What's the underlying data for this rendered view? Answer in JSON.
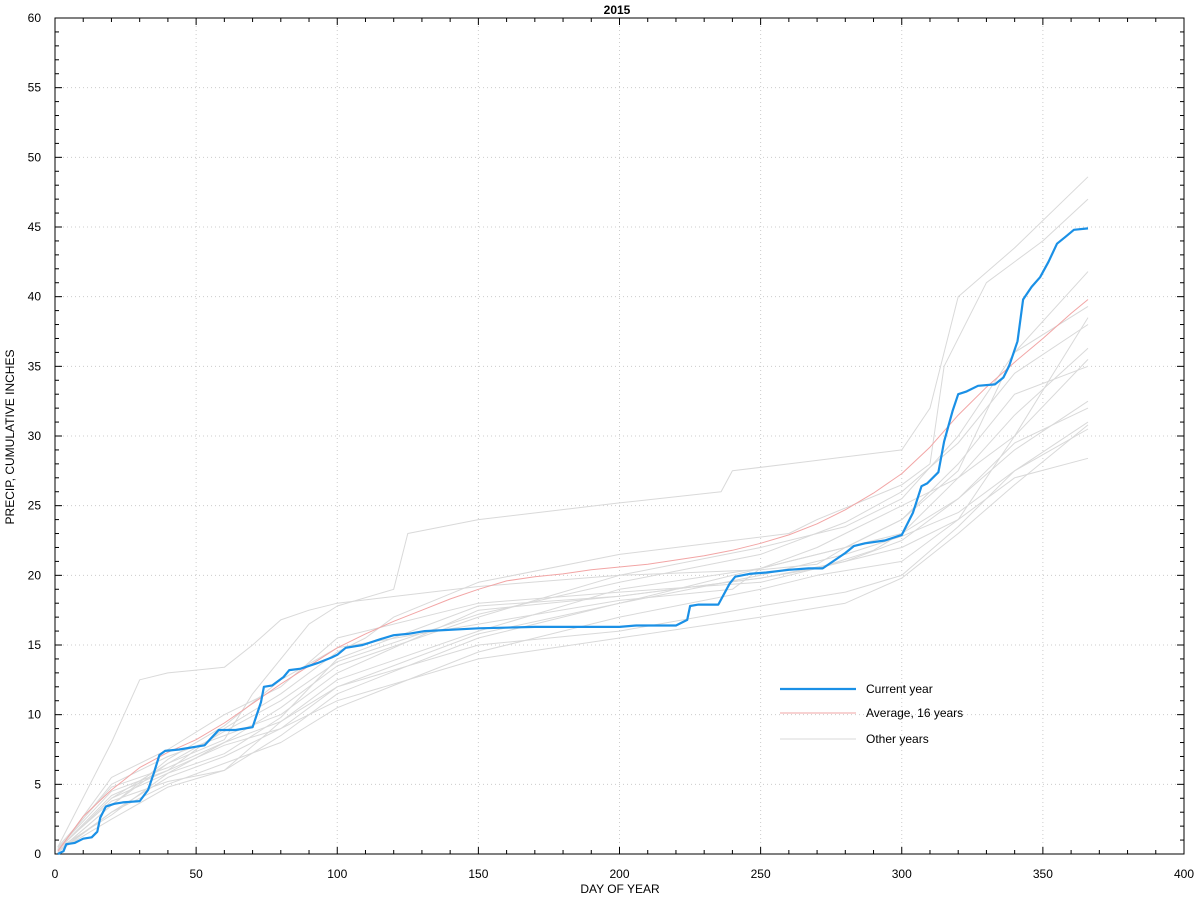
{
  "chart_data": {
    "type": "line",
    "title": "2015",
    "xlabel": "DAY OF YEAR",
    "ylabel": "PRECIP, CUMULATIVE INCHES",
    "xlim": [
      0,
      400
    ],
    "ylim": [
      0,
      60
    ],
    "x_ticks": [
      0,
      50,
      100,
      150,
      200,
      250,
      300,
      350,
      400
    ],
    "y_ticks": [
      0,
      5,
      10,
      15,
      20,
      25,
      30,
      35,
      40,
      45,
      50,
      55,
      60
    ],
    "grid": true,
    "legend_position": "lower-right",
    "colors": {
      "current": "#1a90e6",
      "average": "#f2a5a5",
      "other": "#d9d9d9"
    },
    "series": [
      {
        "name": "Current year",
        "role": "current",
        "x": [
          1,
          3,
          4,
          7,
          10,
          13,
          15,
          16,
          18,
          21,
          24,
          30,
          33,
          35,
          37,
          39,
          44,
          50,
          53,
          58,
          64,
          70,
          73,
          74,
          77,
          81,
          83,
          87,
          93,
          98,
          100,
          103,
          109,
          115,
          120,
          125,
          131,
          150,
          170,
          200,
          206,
          220,
          224,
          225,
          228,
          235,
          239,
          241,
          246,
          252,
          260,
          267,
          272,
          280,
          283,
          287,
          294,
          300,
          304,
          307,
          309,
          313,
          315,
          318,
          320,
          323,
          327,
          333,
          336,
          338,
          341,
          343,
          346,
          349,
          352,
          355,
          358,
          361,
          366
        ],
        "y": [
          0.0,
          0.2,
          0.7,
          0.8,
          1.1,
          1.2,
          1.6,
          2.6,
          3.4,
          3.6,
          3.7,
          3.8,
          4.6,
          5.8,
          7.1,
          7.4,
          7.5,
          7.7,
          7.8,
          8.9,
          8.9,
          9.1,
          10.9,
          12.0,
          12.1,
          12.7,
          13.2,
          13.3,
          13.7,
          14.1,
          14.3,
          14.8,
          15.0,
          15.4,
          15.7,
          15.8,
          16.0,
          16.2,
          16.3,
          16.3,
          16.4,
          16.4,
          16.8,
          17.8,
          17.9,
          17.9,
          19.4,
          19.9,
          20.1,
          20.2,
          20.4,
          20.5,
          20.5,
          21.6,
          22.1,
          22.3,
          22.5,
          22.9,
          24.5,
          26.4,
          26.6,
          27.4,
          29.6,
          31.8,
          33.0,
          33.2,
          33.6,
          33.7,
          34.2,
          35.0,
          36.8,
          39.8,
          40.7,
          41.4,
          42.5,
          43.8,
          44.3,
          44.8,
          44.9
        ]
      },
      {
        "name": "Average, 16 years",
        "role": "average",
        "x": [
          1,
          10,
          20,
          30,
          40,
          50,
          60,
          70,
          80,
          90,
          100,
          110,
          120,
          130,
          140,
          150,
          160,
          170,
          180,
          190,
          200,
          210,
          220,
          230,
          240,
          250,
          260,
          270,
          280,
          290,
          300,
          310,
          320,
          330,
          340,
          350,
          360,
          366
        ],
        "y": [
          0.2,
          2.7,
          4.6,
          6.2,
          7.3,
          8.2,
          9.4,
          10.8,
          12.2,
          13.5,
          14.8,
          15.8,
          16.7,
          17.5,
          18.3,
          19.0,
          19.6,
          19.9,
          20.1,
          20.4,
          20.6,
          20.8,
          21.1,
          21.4,
          21.8,
          22.3,
          22.9,
          23.7,
          24.7,
          25.9,
          27.3,
          29.2,
          31.5,
          33.5,
          35.3,
          37.0,
          38.8,
          39.8
        ]
      },
      {
        "name": "",
        "role": "other",
        "x": [
          1,
          20,
          30,
          40,
          50,
          60,
          70,
          80,
          90,
          100,
          150,
          200,
          250,
          270,
          280,
          290,
          300,
          320,
          340,
          366
        ],
        "y": [
          0.5,
          8.0,
          12.5,
          13.0,
          13.2,
          13.4,
          15.0,
          16.8,
          17.5,
          18.0,
          19.2,
          20.0,
          20.4,
          20.8,
          22.0,
          23.0,
          24.0,
          27.5,
          36.0,
          41.8
        ]
      },
      {
        "name": "",
        "role": "other",
        "x": [
          1,
          20,
          40,
          60,
          70,
          80,
          90,
          100,
          120,
          125,
          150,
          200,
          236,
          240,
          260,
          280,
          300,
          310,
          320,
          340,
          366
        ],
        "y": [
          0.3,
          4.0,
          6.5,
          8.2,
          11.5,
          14.0,
          16.5,
          17.8,
          19.0,
          23.0,
          24.0,
          25.2,
          26.0,
          27.5,
          28.0,
          28.5,
          29.0,
          32.0,
          40.0,
          43.5,
          48.6
        ]
      },
      {
        "name": "",
        "role": "other",
        "x": [
          1,
          20,
          40,
          60,
          80,
          100,
          110,
          120,
          150,
          200,
          240,
          260,
          270,
          300,
          310,
          315,
          330,
          350,
          366
        ],
        "y": [
          0.4,
          4.5,
          6.0,
          9.0,
          11.5,
          14.5,
          15.5,
          17.0,
          19.5,
          21.5,
          22.5,
          23.0,
          24.0,
          26.5,
          28.0,
          35.0,
          41.0,
          44.0,
          47.0
        ]
      },
      {
        "name": "",
        "role": "other",
        "x": [
          1,
          20,
          40,
          60,
          80,
          100,
          150,
          200,
          240,
          250,
          270,
          280,
          300,
          320,
          340,
          366
        ],
        "y": [
          0.2,
          3.5,
          6.8,
          9.2,
          12.5,
          14.8,
          16.5,
          18.2,
          19.0,
          20.5,
          22.0,
          23.0,
          25.0,
          27.0,
          30.0,
          35.5
        ]
      },
      {
        "name": "",
        "role": "other",
        "x": [
          1,
          20,
          40,
          60,
          80,
          100,
          150,
          200,
          250,
          270,
          290,
          300,
          320,
          340,
          366
        ],
        "y": [
          0.3,
          5.0,
          7.0,
          8.5,
          10.0,
          13.0,
          17.5,
          18.5,
          19.8,
          20.5,
          21.5,
          22.0,
          24.0,
          27.0,
          28.4
        ]
      },
      {
        "name": "",
        "role": "other",
        "x": [
          1,
          20,
          40,
          60,
          70,
          80,
          100,
          150,
          200,
          250,
          280,
          300,
          320,
          340,
          366
        ],
        "y": [
          0.2,
          3.0,
          5.5,
          7.0,
          8.0,
          9.0,
          11.0,
          14.0,
          15.5,
          17.0,
          18.0,
          19.8,
          23.0,
          26.5,
          30.8
        ]
      },
      {
        "name": "",
        "role": "other",
        "x": [
          1,
          20,
          40,
          60,
          80,
          100,
          150,
          200,
          250,
          280,
          300,
          320,
          340,
          366
        ],
        "y": [
          0.3,
          4.2,
          6.0,
          7.8,
          9.0,
          12.0,
          15.0,
          16.0,
          17.8,
          18.8,
          20.0,
          23.5,
          27.5,
          31.0
        ]
      },
      {
        "name": "",
        "role": "other",
        "x": [
          1,
          20,
          40,
          60,
          80,
          100,
          150,
          200,
          250,
          260,
          280,
          300,
          320,
          340,
          366
        ],
        "y": [
          0.4,
          3.8,
          5.2,
          6.0,
          9.5,
          12.5,
          16.0,
          19.0,
          20.5,
          21.0,
          22.0,
          23.0,
          25.5,
          29.0,
          32.5
        ]
      },
      {
        "name": "",
        "role": "other",
        "x": [
          1,
          20,
          40,
          60,
          80,
          100,
          150,
          200,
          250,
          270,
          290,
          300,
          320,
          340,
          366
        ],
        "y": [
          0.2,
          5.5,
          7.5,
          10.0,
          12.0,
          15.5,
          18.0,
          18.8,
          19.5,
          20.5,
          21.8,
          23.0,
          27.0,
          31.5,
          36.3
        ]
      },
      {
        "name": "",
        "role": "other",
        "x": [
          1,
          20,
          40,
          60,
          80,
          100,
          150,
          200,
          250,
          270,
          300,
          320,
          340,
          366
        ],
        "y": [
          0.1,
          3.0,
          5.0,
          6.5,
          8.0,
          10.5,
          14.5,
          17.0,
          19.0,
          20.0,
          21.0,
          24.0,
          30.0,
          38.5
        ]
      },
      {
        "name": "",
        "role": "other",
        "x": [
          1,
          20,
          40,
          60,
          80,
          100,
          150,
          200,
          250,
          280,
          300,
          320,
          340,
          366
        ],
        "y": [
          0.5,
          4.8,
          6.2,
          8.0,
          10.5,
          13.5,
          17.0,
          20.0,
          22.0,
          23.5,
          25.5,
          30.0,
          36.0,
          39.3
        ]
      },
      {
        "name": "",
        "role": "other",
        "x": [
          1,
          20,
          40,
          60,
          80,
          100,
          150,
          200,
          250,
          280,
          300,
          320,
          340,
          366
        ],
        "y": [
          0.2,
          2.5,
          4.8,
          6.0,
          8.5,
          11.5,
          15.5,
          18.0,
          20.5,
          22.0,
          24.0,
          28.0,
          33.0,
          35.0
        ]
      },
      {
        "name": "",
        "role": "other",
        "x": [
          1,
          20,
          40,
          60,
          80,
          100,
          150,
          200,
          250,
          280,
          300,
          320,
          340,
          366
        ],
        "y": [
          0.3,
          4.0,
          5.8,
          7.2,
          9.8,
          14.0,
          17.8,
          18.5,
          19.8,
          21.0,
          22.5,
          25.5,
          29.5,
          32.0
        ]
      },
      {
        "name": "",
        "role": "other",
        "x": [
          1,
          20,
          40,
          60,
          80,
          100,
          150,
          200,
          250,
          280,
          300,
          320,
          340,
          366
        ],
        "y": [
          0.2,
          3.5,
          6.5,
          8.8,
          11.0,
          13.8,
          17.2,
          19.5,
          21.5,
          23.8,
          26.0,
          29.5,
          34.5,
          38.0
        ]
      },
      {
        "name": "",
        "role": "other",
        "x": [
          1,
          20,
          40,
          60,
          80,
          100,
          150,
          200,
          250,
          280,
          300,
          320,
          340,
          366
        ],
        "y": [
          0.4,
          2.8,
          5.8,
          8.0,
          9.5,
          12.0,
          15.8,
          18.0,
          20.0,
          21.5,
          22.8,
          24.5,
          27.5,
          30.5
        ]
      }
    ],
    "legend": [
      {
        "label": "Current year",
        "role": "current"
      },
      {
        "label": "Average, 16 years",
        "role": "average"
      },
      {
        "label": "Other years",
        "role": "other"
      }
    ]
  }
}
